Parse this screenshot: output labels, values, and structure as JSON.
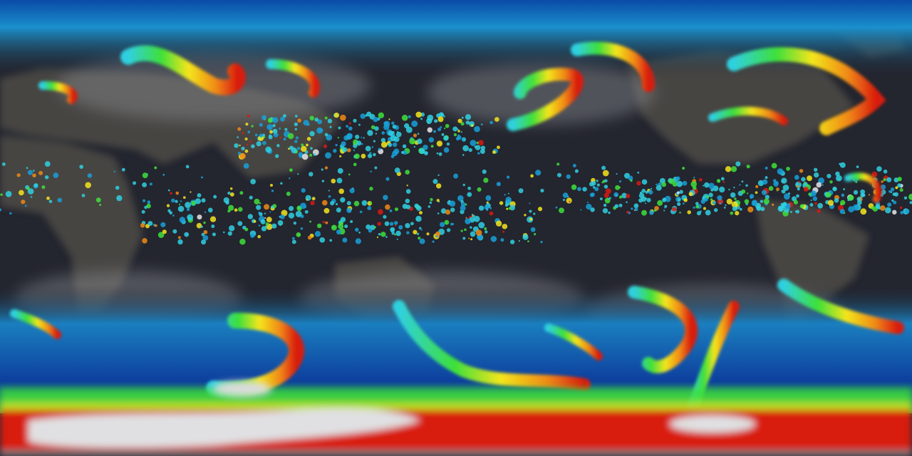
{
  "map": {
    "projection": "equirectangular",
    "view": "global",
    "layers": [
      "infrared-cloud-imagery",
      "precipitation-rate"
    ],
    "colors": {
      "ocean_dark": "#23252f",
      "land": "#4b4a45",
      "cloud_gray": "#8a8c92",
      "cold_blue": "#0d3f9e",
      "light_blue": "#18a0d8",
      "cyan": "#2fd0e0",
      "green": "#3ee03a",
      "yellow": "#f4e51c",
      "orange": "#f08a14",
      "red": "#d81a10",
      "dark_red": "#7a0c08",
      "white": "#e8e8ea"
    }
  }
}
